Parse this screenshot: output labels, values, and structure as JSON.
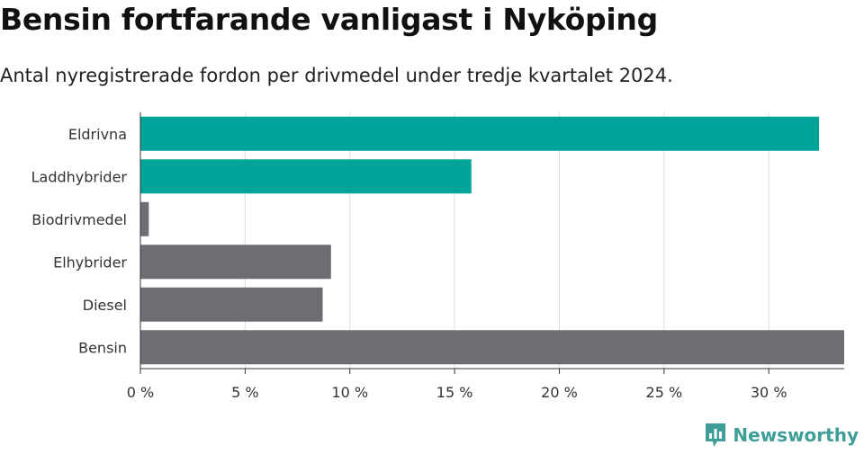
{
  "title": "Bensin fortfarande vanligast i Nyköping",
  "subtitle": "Antal nyregistrerade fordon per drivmedel under tredje kvartalet 2024.",
  "brand": {
    "name": "Newsworthy",
    "icon": "newsworthy-logo-icon"
  },
  "colors": {
    "highlight": "#00a499",
    "default": "#6e6d74",
    "grid": "#dddddd",
    "axis": "#333333"
  },
  "chart_data": {
    "type": "bar",
    "orientation": "horizontal",
    "categories": [
      "Eldrivna",
      "Laddhybrider",
      "Biodrivmedel",
      "Elhybrider",
      "Diesel",
      "Bensin"
    ],
    "values": [
      32.4,
      15.8,
      0.4,
      9.1,
      8.7,
      33.6
    ],
    "highlighted": [
      true,
      true,
      false,
      false,
      false,
      false
    ],
    "xlim": [
      0,
      33.6
    ],
    "xticks": [
      0,
      5,
      10,
      15,
      20,
      25,
      30
    ],
    "xtick_labels": [
      "0 %",
      "5 %",
      "10 %",
      "15 %",
      "20 %",
      "25 %",
      "30 %"
    ],
    "grid": true,
    "title": "Bensin fortfarande vanligast i Nyköping",
    "xlabel": "",
    "ylabel": ""
  }
}
